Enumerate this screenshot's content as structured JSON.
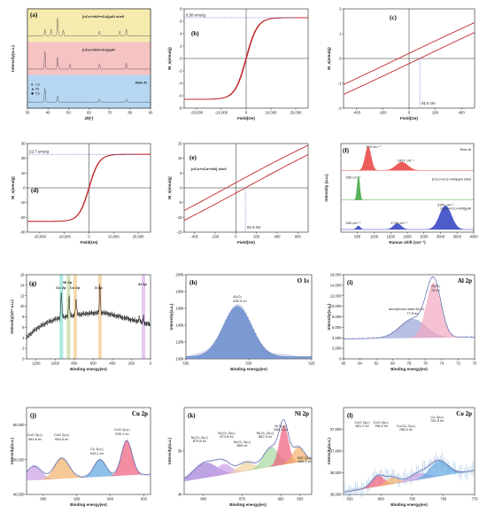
{
  "chart_data": [
    {
      "id": "a",
      "type": "line",
      "panel_label": "(a)",
      "xlabel": "2θ(°)",
      "ylabel": "Intensity(a.u.)",
      "xlim": [
        30,
        90
      ],
      "xticks": [
        "30",
        "40",
        "50",
        "60",
        "70",
        "80",
        "90"
      ],
      "series": [
        {
          "name": "[nCu+nNi+nCo]/μAl shell",
          "band_color": "#f3e7a1",
          "line_color": "#444444",
          "peaks": [
            [
              38.5,
              0.35
            ],
            [
              41.5,
              0.35
            ],
            [
              44.7,
              0.9
            ],
            [
              47.5,
              0.3
            ],
            [
              65.1,
              0.25
            ],
            [
              75,
              0.25
            ],
            [
              78.2,
              0.35
            ]
          ]
        },
        {
          "name": "[nCu+nNi+nCo]/μAl",
          "band_color": "#f5b9b9",
          "line_color": "#444444",
          "peaks": [
            [
              38.5,
              0.9
            ],
            [
              44.7,
              0.6
            ],
            [
              50.8,
              0.25
            ],
            [
              65.1,
              0.25
            ],
            [
              78.2,
              0.3
            ]
          ]
        },
        {
          "name": "Raw Al",
          "band_color": "#a9cfee",
          "line_color": "#444444",
          "peaks": [
            [
              38.5,
              0.7
            ],
            [
              44.7,
              0.3
            ],
            [
              65.1,
              0.15
            ],
            [
              78.2,
              0.15
            ]
          ]
        }
      ],
      "legend": [
        "Co",
        "Ni",
        "Cu"
      ]
    },
    {
      "id": "b",
      "type": "line",
      "panel_label": "(b)",
      "xlabel": "Field(Oe)",
      "ylabel": "M_s(emu/g)",
      "xlim": [
        -25000,
        25000
      ],
      "ylim": [
        -8,
        8
      ],
      "xticks": [
        "-20,000",
        "-10,000",
        "0",
        "10,000",
        "20,000"
      ],
      "yticks": [
        "-8",
        "-6",
        "-4",
        "-2",
        "0",
        "2",
        "4",
        "6",
        "8"
      ],
      "annotation": "6.58 emu/g",
      "ms": 6.58,
      "hc": 0
    },
    {
      "id": "c",
      "type": "line",
      "panel_label": "(c)",
      "xlabel": "Field(Oe)",
      "ylabel": "M_s(emu/g)",
      "xlim": [
        -500,
        500
      ],
      "ylim": [
        -2,
        2
      ],
      "xticks": [
        "-400",
        "-200",
        "0",
        "200",
        "400"
      ],
      "yticks": [
        "-2",
        "-1",
        "0",
        "1",
        "2"
      ],
      "annotation": "81.6 Oe",
      "hc": 81.6
    },
    {
      "id": "d",
      "type": "line",
      "panel_label": "(d)",
      "xlabel": "Field(Oe)",
      "ylabel": "M_s(emu/g)",
      "xlim": [
        -25000,
        25000
      ],
      "ylim": [
        -30,
        30
      ],
      "xticks": [
        "-20,000",
        "-10,000",
        "0",
        "10,000",
        "20,000"
      ],
      "yticks": [
        "-30",
        "-20",
        "-10",
        "0",
        "10",
        "20",
        "30"
      ],
      "annotation": "22.7 emu/g",
      "ms": 22.7
    },
    {
      "id": "e",
      "type": "line",
      "panel_label": "(e)",
      "xlabel": "Field(Oe)",
      "ylabel": "M_s(emu/g)",
      "xlim": [
        -500,
        700
      ],
      "ylim": [
        -15,
        15
      ],
      "xticks": [
        "-400",
        "-200",
        "0",
        "200",
        "400",
        "600"
      ],
      "yticks": [
        "-15",
        "-10",
        "-5",
        "0",
        "5",
        "10",
        "15"
      ],
      "annotation": "91.9 Oe",
      "hc": 91.9,
      "inner_label": "[nCu+nCo+nNi] shell"
    },
    {
      "id": "f",
      "type": "area",
      "panel_label": "(f)",
      "xlabel": "Raman shift (cm⁻¹)",
      "ylabel": "Intensity (a.u.)",
      "xlim": [
        0,
        4000
      ],
      "xticks": [
        "500",
        "1000",
        "1500",
        "2000",
        "2500",
        "3000",
        "3500",
        "4000"
      ],
      "series": [
        {
          "name": "Raw Al",
          "color": "#e8413e",
          "peaks": [
            [
              820,
              1.0,
              90
            ],
            [
              1837,
              0.35,
              180
            ]
          ]
        },
        {
          "name": "[nCu+nCo+nNi]/μAl shell",
          "color": "#3aa43a",
          "peaks": [
            [
              530,
              1.0,
              40
            ]
          ]
        },
        {
          "name": "[nCu+nCo+nNi]/μAl",
          "color": "#2f3fc2",
          "peaks": [
            [
              530,
              0.15,
              60
            ],
            [
              1700,
              0.25,
              120
            ],
            [
              3150,
              1.0,
              180
            ]
          ]
        }
      ],
      "annotations": [
        "820 cm⁻¹",
        "1837 cm⁻¹",
        "530 cm⁻¹",
        "530 cm⁻¹",
        "1700 cm⁻¹",
        "3150 cm⁻¹"
      ]
    },
    {
      "id": "g",
      "type": "line",
      "panel_label": "(g)",
      "xlabel": "Binding energy(ev)",
      "ylabel": "Intensity(10⁴ a.u.)",
      "xlim": [
        1300,
        0
      ],
      "ylim": [
        0,
        16
      ],
      "xticks": [
        "1200",
        "1000",
        "800",
        "600",
        "400",
        "200",
        "0"
      ],
      "yticks": [
        "0",
        "2",
        "4",
        "6",
        "8",
        "10",
        "12",
        "14",
        "16"
      ],
      "bands": [
        {
          "label": "Cu 2p",
          "x": 935,
          "color": "#a3e6e0"
        },
        {
          "label": "Ni 2p",
          "x": 860,
          "color": "#cfe0b0"
        },
        {
          "label": "Co 2p",
          "x": 790,
          "color": "#f4d6a6"
        },
        {
          "label": "O 2p",
          "x": 531,
          "color": "#f5d3a8"
        },
        {
          "label": "Al 2p",
          "x": 74,
          "color": "#e2c3ef"
        }
      ]
    },
    {
      "id": "h",
      "type": "line",
      "panel_label": "(h)",
      "title": "O 1s",
      "xlabel": "Binding energy(ev)",
      "ylabel": "Intensity(a.u.)",
      "xlim": [
        535,
        525
      ],
      "ylim": [
        100000,
        200000
      ],
      "xticks": [
        "535",
        "530",
        "525"
      ],
      "yticks": [
        "100k",
        "120k",
        "140k",
        "160k",
        "180k",
        "200k"
      ],
      "peak_label": "Al₂O₃",
      "peak_value": "530.9 ev",
      "center": 530.9
    },
    {
      "id": "i",
      "type": "line",
      "panel_label": "(i)",
      "title": "Al 2p",
      "xlabel": "Binding energy(ev)",
      "ylabel": "Intensity(a.u.)",
      "xlim": [
        86,
        70
      ],
      "ylim": [
        0,
        16000
      ],
      "xticks": [
        "86",
        "84",
        "82",
        "80",
        "78",
        "76",
        "74",
        "72",
        "70"
      ],
      "yticks": [
        "0",
        "2,000",
        "4,000",
        "6,000",
        "8,000",
        "10,000",
        "12,000",
        "14,000",
        "16,000"
      ],
      "peaks": [
        {
          "label": "amorphous state Al₂O₃",
          "value": "77.5 ev",
          "center": 77.5
        },
        {
          "label": "Al₂O₃",
          "value": "75 ev",
          "center": 75
        }
      ]
    },
    {
      "id": "j",
      "type": "line",
      "panel_label": "(j)",
      "title": "Cu 2p",
      "xlabel": "Binding energy(ev)",
      "ylabel": "Intensity(a.u.)",
      "xlim": [
        965,
        928
      ],
      "ylim": [
        40000,
        65000
      ],
      "xticks": [
        "960",
        "950",
        "940",
        "930"
      ],
      "yticks": [
        "40,000",
        "50,000",
        "60,000"
      ],
      "peaks": [
        {
          "label": "CuO 2p₁/₂",
          "value": "962.8 ev",
          "center": 962.8,
          "color": "#c9a0e6"
        },
        {
          "label": "CuO 2p₁/₂",
          "value": "954.5 ev",
          "center": 954.5,
          "color": "#f2b16a"
        },
        {
          "label": "Cu 2p₃/₂",
          "value": "943.1 ev",
          "center": 943.1,
          "color": "#5ea6e0"
        },
        {
          "label": "CuO 2p₃/₂",
          "value": "935.1 ev",
          "center": 935.1,
          "color": "#ee5c7a"
        }
      ]
    },
    {
      "id": "k",
      "type": "line",
      "panel_label": "(k)",
      "title": "Ni 2p",
      "xlabel": "Binding energy(ev)",
      "ylabel": "Intensity(a.u.)",
      "xlim": [
        885,
        852
      ],
      "ylim": [
        4000,
        6000
      ],
      "xticks": [
        "880",
        "870",
        "860",
        "855"
      ],
      "yticks": [
        "4k",
        "5k"
      ],
      "peaks": [
        {
          "label": "Ni₂O₃ 2p₁/₂",
          "value": "879.6 ev",
          "center": 879.6,
          "color": "#a07cd6"
        },
        {
          "label": "Ni₂O₃ 2p₁/₂",
          "value": "874.8 ev",
          "center": 874.8,
          "color": "#c9a0e6"
        },
        {
          "label": "Ni₂O₃ 2p₁/₂",
          "value": "869 ev",
          "center": 869,
          "color": "#f2d4a0"
        },
        {
          "label": "Ni₂O₃ 2p₃/₂",
          "value": "862.5 ev",
          "center": 862.5,
          "color": "#a7d8a0"
        },
        {
          "label": "Ni 2p₃/₂",
          "value": "859.2 ev",
          "center": 859.2,
          "color": "#ee5c7a"
        },
        {
          "label": "NiO 2p₃/₂",
          "value": "855.5 ev",
          "center": 855.5,
          "color": "#f2b16a"
        }
      ]
    },
    {
      "id": "l",
      "type": "line",
      "panel_label": "(l)",
      "title": "Co 2p",
      "xlabel": "Binding energy(ev)",
      "ylabel": "Intensity(a.u.)",
      "xlim": [
        812,
        770
      ],
      "ylim": [
        36000,
        38000
      ],
      "xticks": [
        "810",
        "800",
        "790",
        "780",
        "770"
      ],
      "yticks": [
        "36,000",
        "36,500",
        "37,000",
        "37,500"
      ],
      "peaks": [
        {
          "label": "CoO 2p₁/₂",
          "value": "801.0 ev",
          "center": 801.0,
          "color": "#ee5c7a"
        },
        {
          "label": "CoO 2p₁/₂",
          "value": "796.5 ev",
          "center": 796.5,
          "color": "#f2b16a"
        },
        {
          "label": "Co₃O₄ 2p₃/₂",
          "value": "788.0 ev",
          "center": 788.0,
          "color": "#c9a0e6"
        },
        {
          "label": "Co 2p₃/₂",
          "value": "781.5 ev",
          "center": 781.5,
          "color": "#5ea6e0"
        }
      ]
    }
  ]
}
